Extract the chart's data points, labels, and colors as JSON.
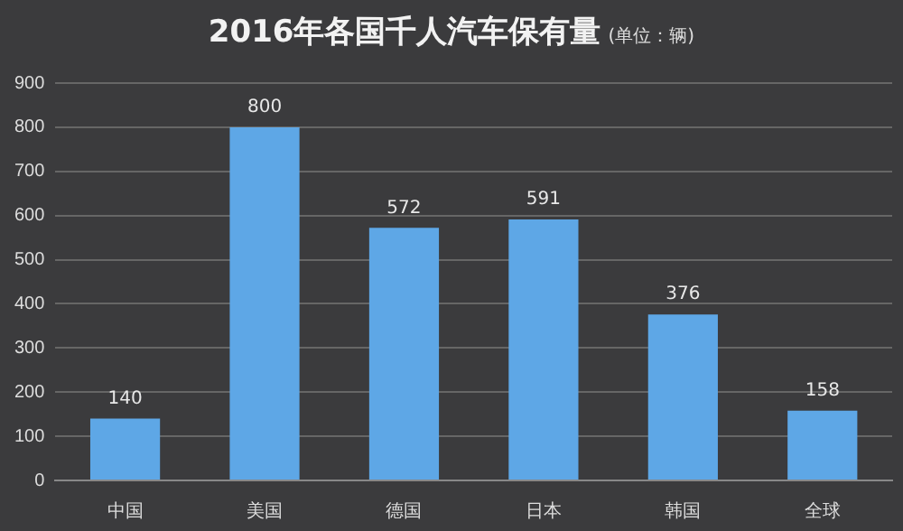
{
  "chart_data": {
    "type": "bar",
    "title": "2016年各国千人汽车保有量",
    "subtitle": "(单位：辆)",
    "categories": [
      "中国",
      "美国",
      "德国",
      "日本",
      "韩国",
      "全球"
    ],
    "values": [
      140,
      800,
      572,
      591,
      376,
      158
    ],
    "color": "#5ea7e6",
    "ylim": [
      0,
      900
    ],
    "yticks": [
      0,
      100,
      200,
      300,
      400,
      500,
      600,
      700,
      800,
      900
    ],
    "grid": "y",
    "data_labels": true,
    "legend": false
  }
}
